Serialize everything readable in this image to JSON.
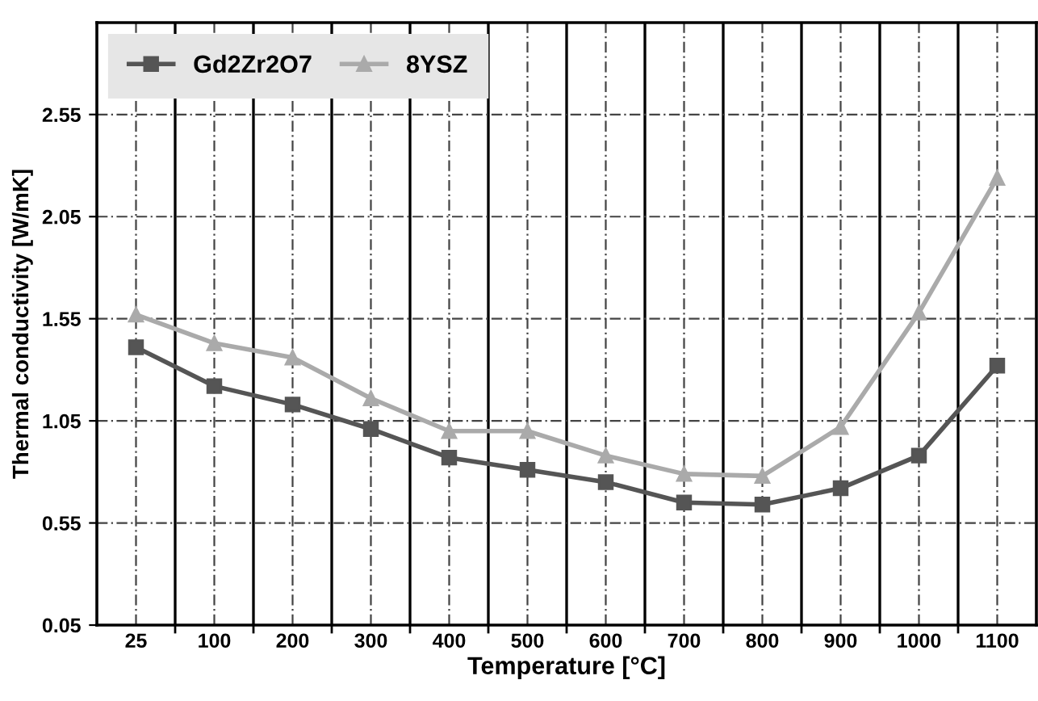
{
  "chart_data": {
    "type": "line",
    "xlabel": "Temperature [°C]",
    "ylabel": "Thermal conductivity [W/mK]",
    "categories": [
      "25",
      "100",
      "200",
      "300",
      "400",
      "500",
      "600",
      "700",
      "800",
      "900",
      "1000",
      "1100"
    ],
    "series": [
      {
        "name": "Gd2Zr2O7",
        "color": "#555555",
        "marker": "square",
        "values": [
          1.41,
          1.22,
          1.13,
          1.01,
          0.87,
          0.81,
          0.75,
          0.65,
          0.64,
          0.72,
          0.88,
          1.32
        ]
      },
      {
        "name": "8YSZ",
        "color": "#aaaaaa",
        "marker": "triangle",
        "values": [
          1.57,
          1.43,
          1.36,
          1.16,
          1.0,
          1.0,
          0.88,
          0.79,
          0.78,
          1.02,
          1.58,
          2.24
        ]
      }
    ],
    "ylim": [
      0.05,
      3.0
    ],
    "yticks": [
      0.05,
      0.55,
      1.05,
      1.55,
      2.05,
      2.55
    ],
    "grid": true,
    "legend": "top left",
    "line_style": "solid"
  }
}
